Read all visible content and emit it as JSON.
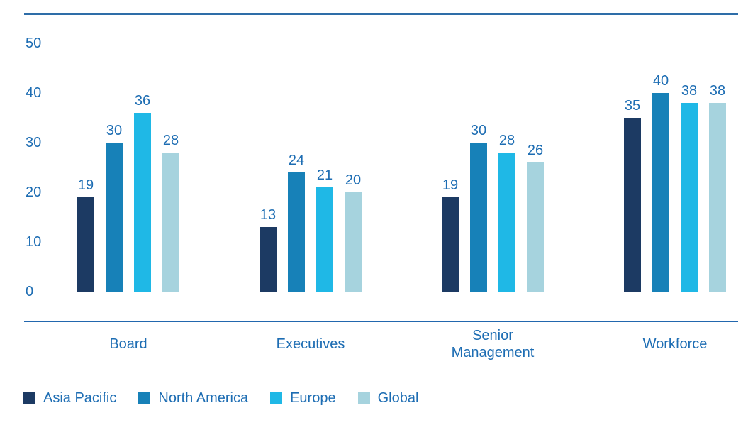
{
  "colors": {
    "background": "#FFFFFF",
    "text": "#1D6DB3",
    "top_rule": "#2E6DA8",
    "axis_line": "#2267AE"
  },
  "chart_data": {
    "type": "bar",
    "title": "",
    "categories": [
      "Board",
      "Executives",
      "Senior Management",
      "Workforce"
    ],
    "series": [
      {
        "name": "Asia Pacific",
        "color": "#1C3A63",
        "values": [
          19,
          13,
          19,
          35
        ]
      },
      {
        "name": "North America",
        "color": "#1781B8",
        "values": [
          30,
          24,
          30,
          40
        ]
      },
      {
        "name": "Europe",
        "color": "#1FB8E6",
        "values": [
          36,
          21,
          28,
          38
        ]
      },
      {
        "name": "Global",
        "color": "#A6D3DE",
        "values": [
          28,
          20,
          26,
          38
        ]
      }
    ],
    "yticks": [
      0,
      10,
      20,
      30,
      40,
      50
    ],
    "ylim": [
      0,
      50
    ],
    "grid": false,
    "value_labels": true,
    "legend_position": "bottom-left"
  }
}
